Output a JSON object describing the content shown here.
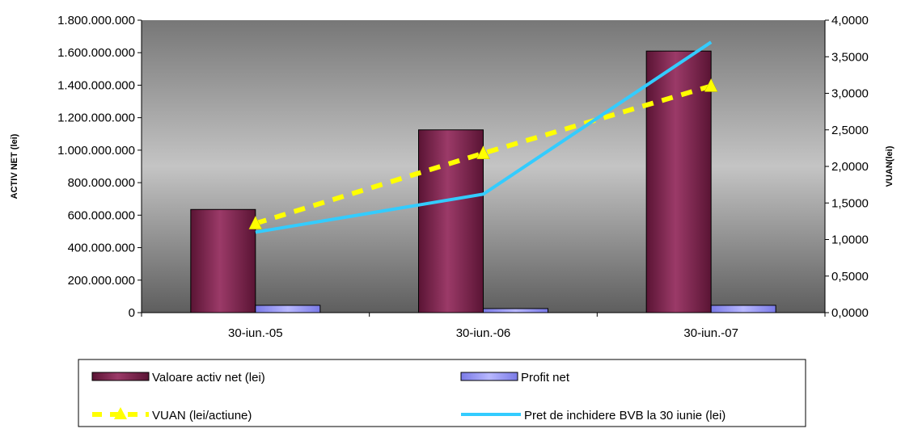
{
  "chart_data": {
    "type": "bar",
    "categories": [
      "30-iun.-05",
      "30-iun.-06",
      "30-iun.-07"
    ],
    "ylabel": "ACTIV NET (lei)",
    "y2label": "VUAN(lei)",
    "ylim": [
      0,
      1800000000
    ],
    "y2lim": [
      0,
      4
    ],
    "yticks": [
      "0",
      "200.000.000",
      "400.000.000",
      "600.000.000",
      "800.000.000",
      "1.000.000.000",
      "1.200.000.000",
      "1.400.000.000",
      "1.600.000.000",
      "1.800.000.000"
    ],
    "y2ticks": [
      "0,0000",
      "0,5000",
      "1,0000",
      "1,5000",
      "2,0000",
      "2,5000",
      "3,0000",
      "3,5000",
      "4,0000"
    ],
    "legend_position": "bottom",
    "series": [
      {
        "name": "Valoare activ net (lei)",
        "kind": "bar",
        "axis": "left",
        "color": "#993366",
        "values": [
          635000000,
          1125000000,
          1610000000
        ]
      },
      {
        "name": "Profit net",
        "kind": "bar",
        "axis": "left",
        "color": "#9999ff",
        "values": [
          45000000,
          25000000,
          45000000
        ]
      },
      {
        "name": "VUAN (lei/actiune)",
        "kind": "line-dashed-triangle",
        "axis": "right",
        "color": "#ffff00",
        "values": [
          1.22,
          2.18,
          3.1
        ]
      },
      {
        "name": "Pret de inchidere BVB la 30 iunie (lei)",
        "kind": "line",
        "axis": "right",
        "color": "#33ccff",
        "values": [
          1.1,
          1.62,
          3.7
        ]
      }
    ]
  }
}
